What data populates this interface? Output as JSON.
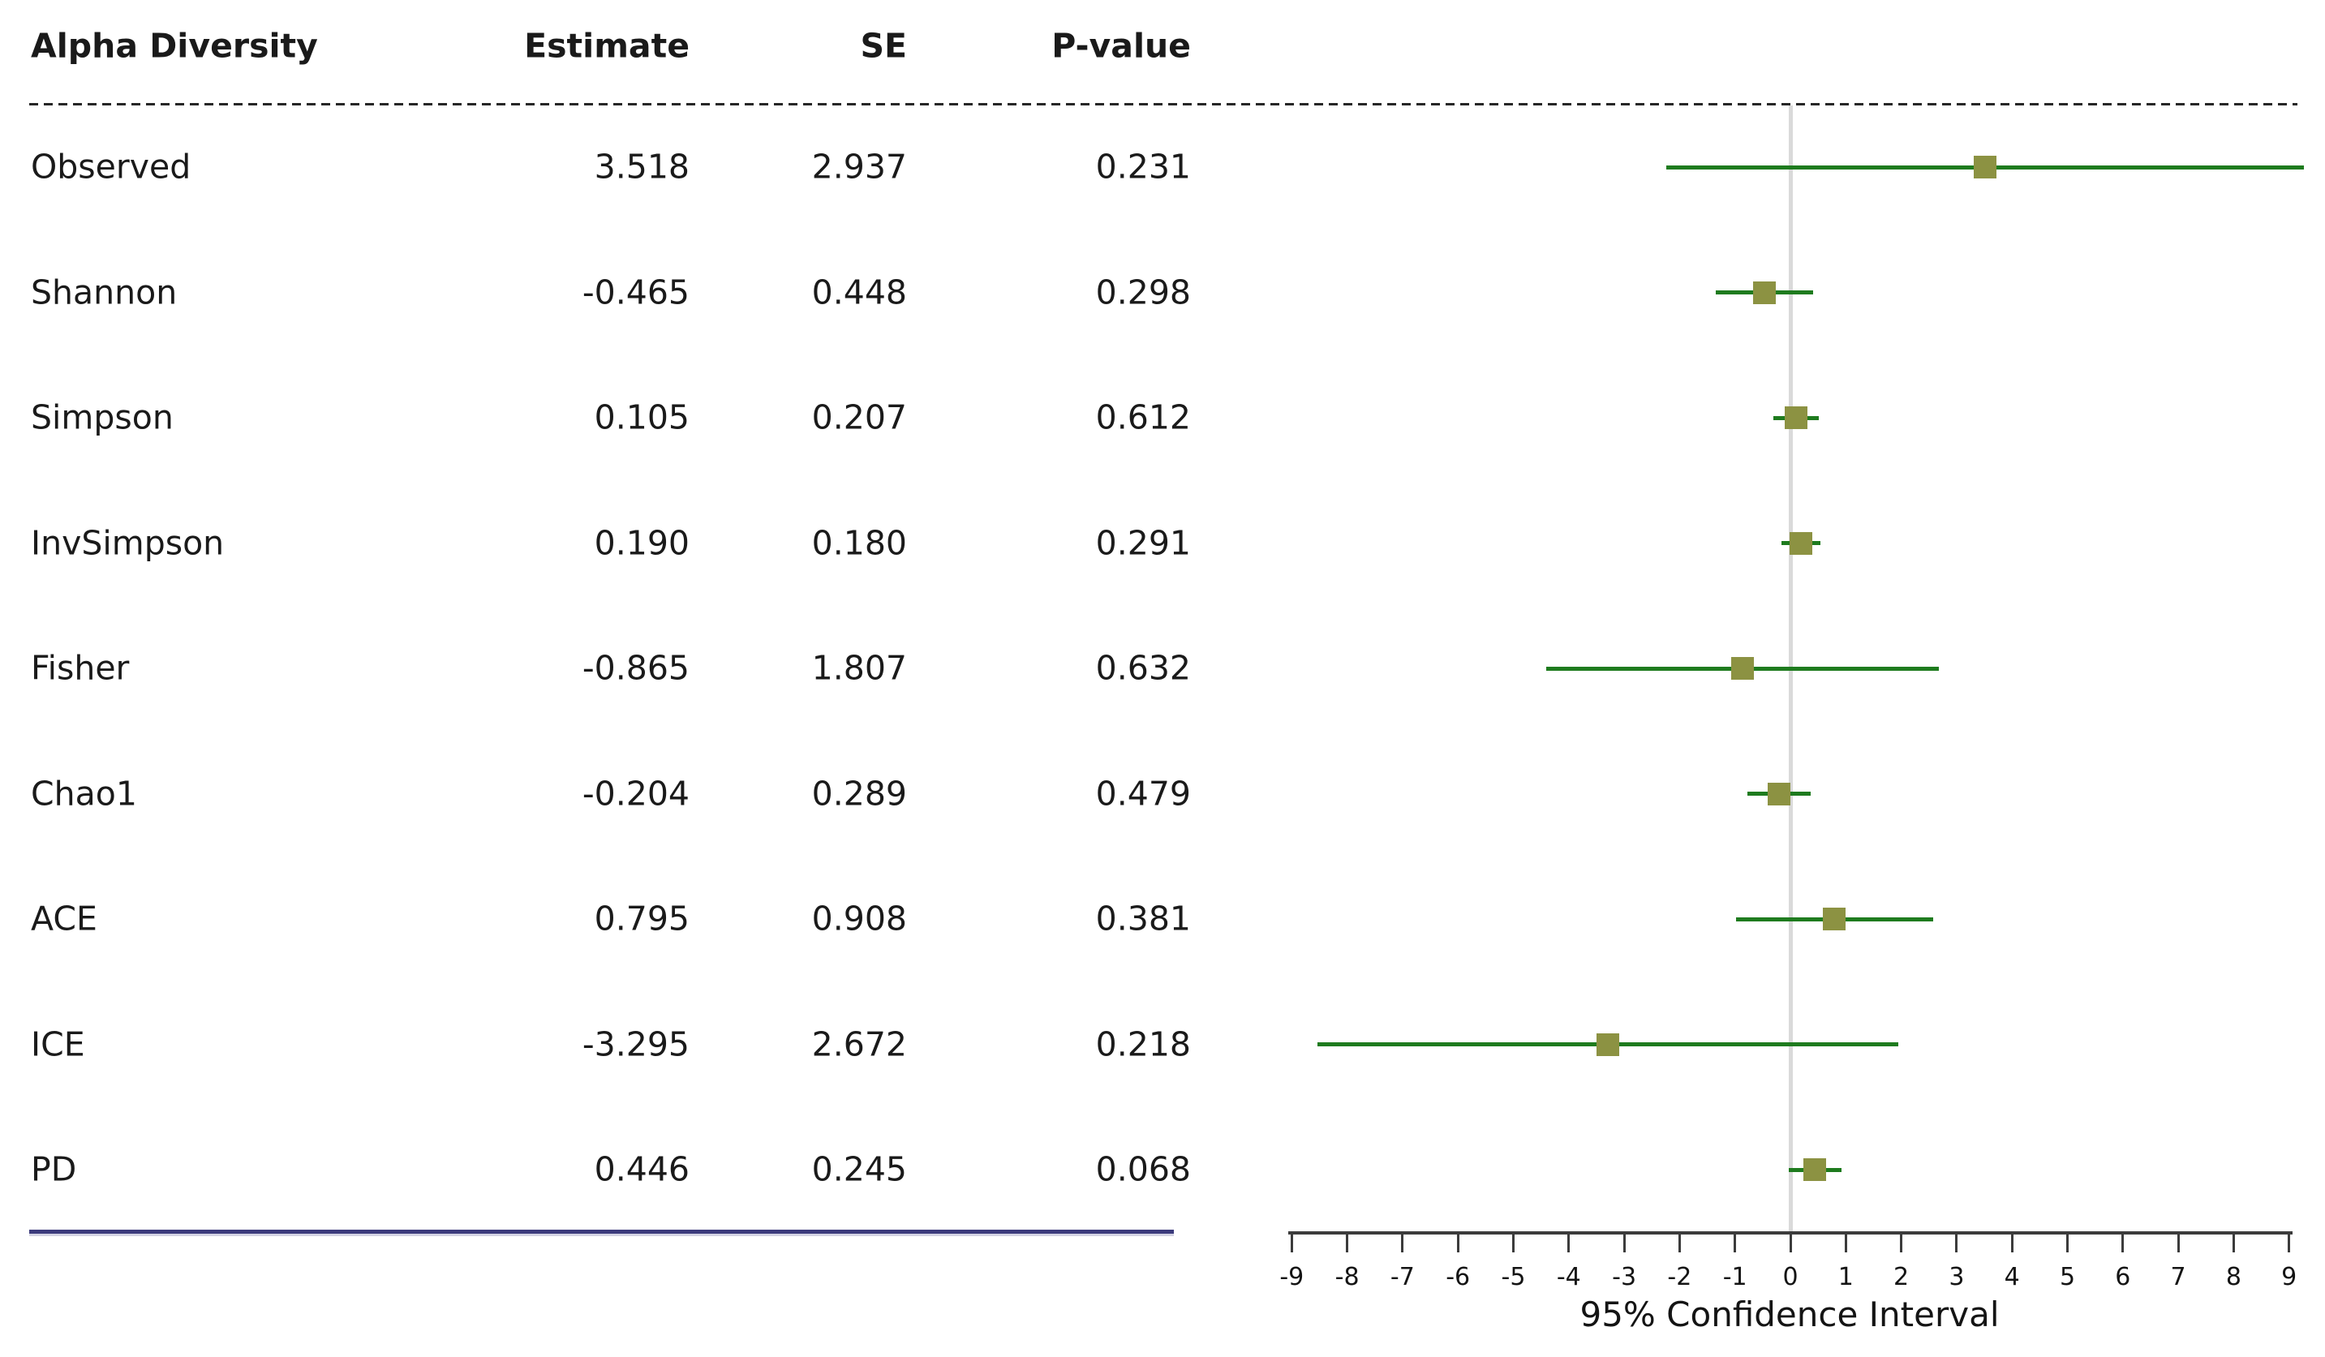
{
  "table": {
    "headers": {
      "label": "Alpha Diversity",
      "estimate": "Estimate",
      "se": "SE",
      "pvalue": "P-value"
    },
    "rows": [
      {
        "label": "Observed",
        "estimate": "3.518",
        "se": "2.937",
        "pvalue": "0.231"
      },
      {
        "label": "Shannon",
        "estimate": "-0.465",
        "se": "0.448",
        "pvalue": "0.298"
      },
      {
        "label": "Simpson",
        "estimate": "0.105",
        "se": "0.207",
        "pvalue": "0.612"
      },
      {
        "label": "InvSimpson",
        "estimate": "0.190",
        "se": "0.180",
        "pvalue": "0.291"
      },
      {
        "label": "Fisher",
        "estimate": "-0.865",
        "se": "1.807",
        "pvalue": "0.632"
      },
      {
        "label": "Chao1",
        "estimate": "-0.204",
        "se": "0.289",
        "pvalue": "0.479"
      },
      {
        "label": "ACE",
        "estimate": "0.795",
        "se": "0.908",
        "pvalue": "0.381"
      },
      {
        "label": "ICE",
        "estimate": "-3.295",
        "se": "2.672",
        "pvalue": "0.218"
      },
      {
        "label": "PD",
        "estimate": "0.446",
        "se": "0.245",
        "pvalue": "0.068"
      }
    ]
  },
  "chart_data": {
    "type": "forest",
    "xlabel": "95% Confidence Interval",
    "xlim": [
      -9,
      9
    ],
    "x_ticks": [
      -9,
      -8,
      -7,
      -6,
      -5,
      -4,
      -3,
      -2,
      -1,
      0,
      1,
      2,
      3,
      4,
      5,
      6,
      7,
      8,
      9
    ],
    "ref_line_x": 0,
    "ci_multiplier": 1.96,
    "point_symbol": "filled-square",
    "series": [
      {
        "label": "Observed",
        "estimate": 3.518,
        "se": 2.937,
        "p_value": 0.231,
        "ci_low": -2.239,
        "ci_high": 9.275
      },
      {
        "label": "Shannon",
        "estimate": -0.465,
        "se": 0.448,
        "p_value": 0.298,
        "ci_low": -1.343,
        "ci_high": 0.413
      },
      {
        "label": "Simpson",
        "estimate": 0.105,
        "se": 0.207,
        "p_value": 0.612,
        "ci_low": -0.301,
        "ci_high": 0.511
      },
      {
        "label": "InvSimpson",
        "estimate": 0.19,
        "se": 0.18,
        "p_value": 0.291,
        "ci_low": -0.163,
        "ci_high": 0.543
      },
      {
        "label": "Fisher",
        "estimate": -0.865,
        "se": 1.807,
        "p_value": 0.632,
        "ci_low": -4.407,
        "ci_high": 2.677
      },
      {
        "label": "Chao1",
        "estimate": -0.204,
        "se": 0.289,
        "p_value": 0.479,
        "ci_low": -0.77,
        "ci_high": 0.362
      },
      {
        "label": "ACE",
        "estimate": 0.795,
        "se": 0.908,
        "p_value": 0.381,
        "ci_low": -0.985,
        "ci_high": 2.575
      },
      {
        "label": "ICE",
        "estimate": -3.295,
        "se": 2.672,
        "p_value": 0.218,
        "ci_low": -8.532,
        "ci_high": 1.942
      },
      {
        "label": "PD",
        "estimate": 0.446,
        "se": 0.245,
        "p_value": 0.068,
        "ci_low": -0.034,
        "ci_high": 0.926
      }
    ]
  },
  "colors": {
    "marker": "#8c9242",
    "ci_line": "#1e7b1e",
    "ref_line": "#dadada",
    "axis": "#3c3c3c",
    "navy_rule": "#3c3b7c",
    "dashed_rule": "#262626"
  }
}
